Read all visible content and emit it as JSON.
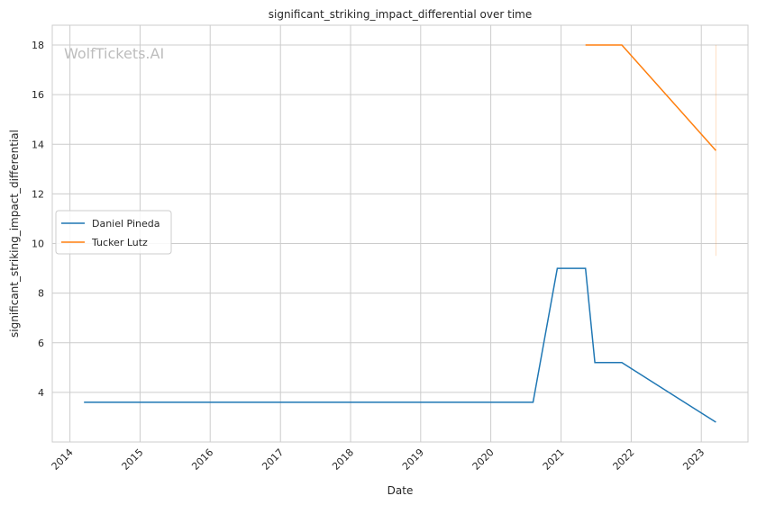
{
  "chart_data": {
    "type": "line",
    "title": "significant_striking_impact_differential over time",
    "xlabel": "Date",
    "ylabel": "significant_striking_impact_differential",
    "watermark": "WolfTickets.AI",
    "xlim": [
      "2013-10-01",
      "2023-09-01"
    ],
    "ylim": [
      2.0,
      18.8
    ],
    "x_ticks": [
      "2014",
      "2015",
      "2016",
      "2017",
      "2018",
      "2019",
      "2020",
      "2021",
      "2022",
      "2023"
    ],
    "y_ticks": [
      4,
      6,
      8,
      10,
      12,
      14,
      16,
      18
    ],
    "grid": true,
    "legend_position": "center-left",
    "series": [
      {
        "name": "Daniel Pineda",
        "color": "#1f77b4",
        "points": [
          {
            "x": "2014-03-15",
            "y": 3.6
          },
          {
            "x": "2020-08-08",
            "y": 3.6
          },
          {
            "x": "2020-12-12",
            "y": 9.0
          },
          {
            "x": "2021-05-08",
            "y": 9.0
          },
          {
            "x": "2021-06-26",
            "y": 5.2
          },
          {
            "x": "2021-11-13",
            "y": 5.2
          },
          {
            "x": "2023-03-18",
            "y": 2.8
          }
        ]
      },
      {
        "name": "Tucker Lutz",
        "color": "#ff7f0e",
        "points": [
          {
            "x": "2021-05-08",
            "y": 18.0
          },
          {
            "x": "2021-11-13",
            "y": 18.0
          },
          {
            "x": "2023-03-18",
            "y": 13.75
          }
        ],
        "band": {
          "x": "2023-03-18",
          "low": 9.5,
          "high": 18.0
        }
      }
    ]
  }
}
